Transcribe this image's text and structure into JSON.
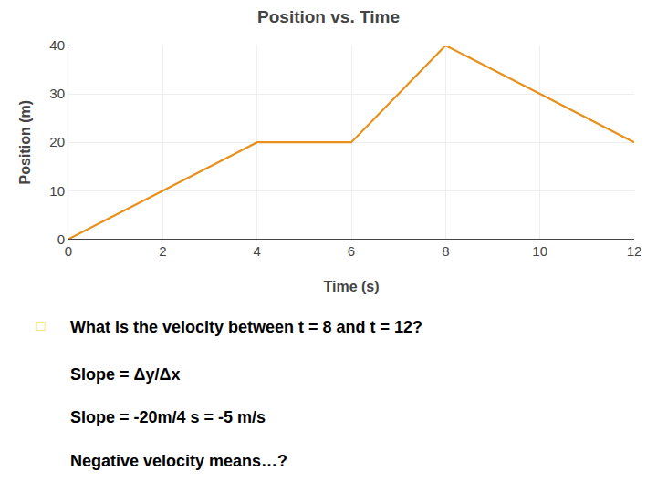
{
  "chart_data": {
    "type": "line",
    "title": "Position vs. Time",
    "xlabel": "Time (s)",
    "ylabel": "Position (m)",
    "x": [
      0,
      2,
      4,
      6,
      8,
      10,
      12
    ],
    "values": [
      0,
      10,
      20,
      20,
      40,
      30,
      20
    ],
    "color": "#E8901A",
    "xlim": [
      0,
      12
    ],
    "ylim": [
      0,
      40
    ],
    "xticks": [
      0,
      2,
      4,
      6,
      8,
      10,
      12
    ],
    "yticks": [
      0,
      10,
      20,
      30,
      40
    ],
    "grid": true,
    "annotations": [
      {
        "text": "□",
        "color": "#FFD700"
      },
      "What is the velocity between t = 8 and t = 12?",
      "Slope = Δy/Δx",
      "Slope = -20m/4 s = -5 m/s",
      "Negative velocity means…?"
    ]
  }
}
